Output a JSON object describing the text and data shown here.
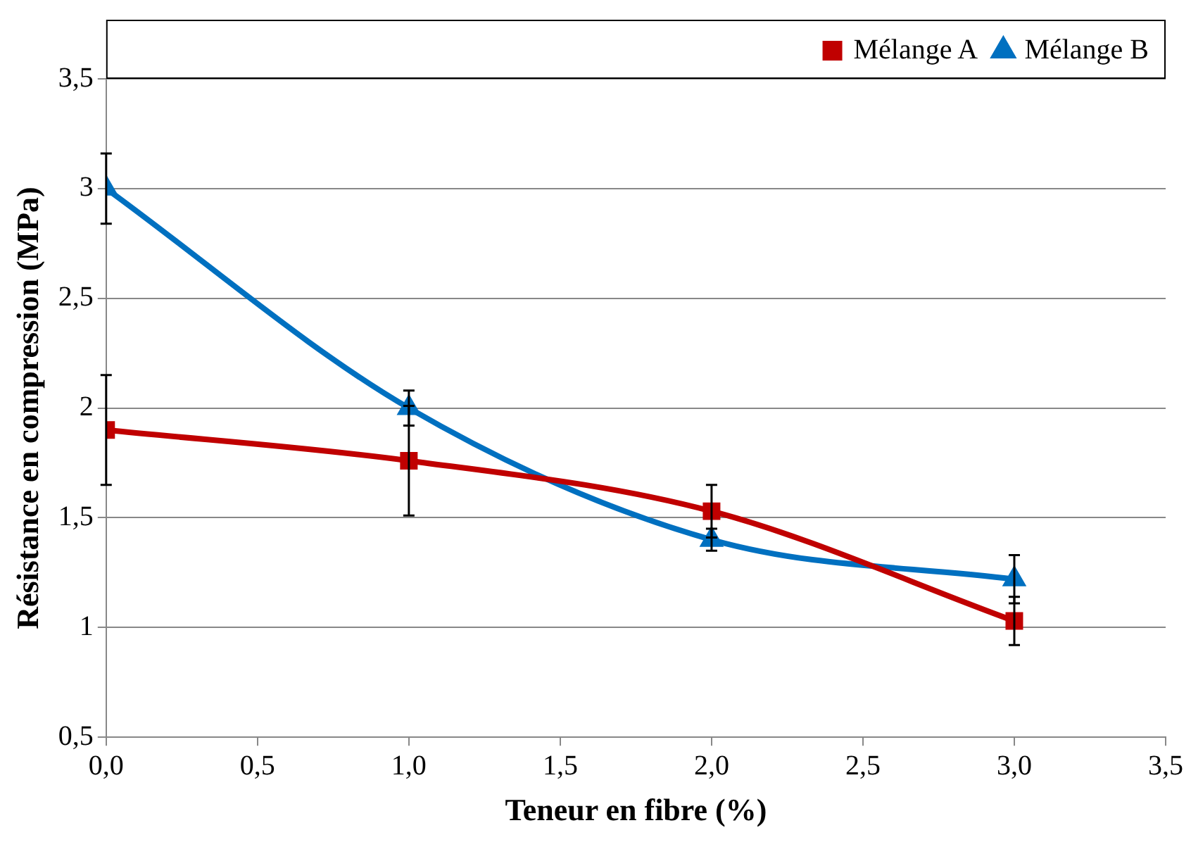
{
  "chart_data": {
    "type": "line",
    "xlabel": "Teneur en fibre (%)",
    "ylabel": "Résistance en compression (MPa)",
    "x": [
      0,
      1,
      2,
      3
    ],
    "series": [
      {
        "name": "Mélange A",
        "color": "#c00000",
        "marker": "square",
        "values": [
          1.9,
          1.76,
          1.53,
          1.03
        ],
        "errors": [
          0.25,
          0.25,
          0.12,
          0.11
        ]
      },
      {
        "name": "Mélange B",
        "color": "#0070c0",
        "marker": "triangle",
        "values": [
          3.0,
          2.0,
          1.4,
          1.22
        ],
        "errors": [
          0.16,
          0.08,
          0.05,
          0.11
        ]
      }
    ],
    "xlim": [
      0,
      3.5
    ],
    "xticks": [
      {
        "value": 0,
        "label": "0,0"
      },
      {
        "value": 0.5,
        "label": "0,5"
      },
      {
        "value": 1,
        "label": "1,0"
      },
      {
        "value": 1.5,
        "label": "1,5"
      },
      {
        "value": 2,
        "label": "2,0"
      },
      {
        "value": 2.5,
        "label": "2,5"
      },
      {
        "value": 3,
        "label": "3,0"
      },
      {
        "value": 3.5,
        "label": "3,5"
      }
    ],
    "ylim": [
      0.5,
      3.5
    ],
    "yticks": [
      {
        "value": 0.5,
        "label": "0,5"
      },
      1,
      {
        "value": 1.5,
        "label": "1,5"
      },
      2,
      {
        "value": 2.5,
        "label": "2,5"
      },
      3,
      {
        "value": 3.5,
        "label": "3,5"
      }
    ],
    "grid": "y",
    "legend": "top right",
    "line_style": "solid"
  }
}
